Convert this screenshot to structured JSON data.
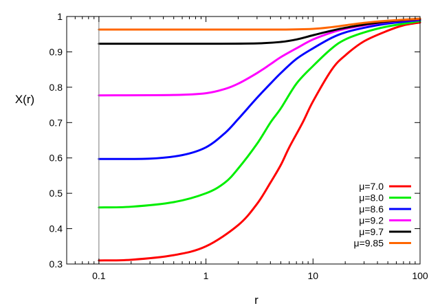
{
  "chart_data": {
    "type": "line",
    "title": "",
    "xlabel": "r",
    "ylabel": "X(r)",
    "xscale": "log",
    "xlim": [
      0.05,
      100
    ],
    "ylim": [
      0.3,
      1.0
    ],
    "x_ticks": [
      {
        "value": 0.1,
        "label": "0.1"
      },
      {
        "value": 1,
        "label": "1"
      },
      {
        "value": 10,
        "label": "10"
      },
      {
        "value": 100,
        "label": "100"
      }
    ],
    "y_ticks": [
      {
        "value": 0.3,
        "label": "0.3"
      },
      {
        "value": 0.4,
        "label": "0.4"
      },
      {
        "value": 0.5,
        "label": "0.5"
      },
      {
        "value": 0.6,
        "label": "0.6"
      },
      {
        "value": 0.7,
        "label": "0.7"
      },
      {
        "value": 0.8,
        "label": "0.8"
      },
      {
        "value": 0.9,
        "label": "0.9"
      },
      {
        "value": 1.0,
        "label": "1"
      }
    ],
    "legend_position": "bottom-right",
    "grid": false,
    "reference_line_x": 0.1,
    "series": [
      {
        "name": "μ=7.0",
        "color": "#ff0000",
        "x": [
          0.1,
          0.2,
          0.5,
          1,
          2,
          3,
          4,
          5,
          6,
          8,
          10,
          15,
          20,
          30,
          50,
          70,
          100
        ],
        "y": [
          0.31,
          0.312,
          0.325,
          0.35,
          0.41,
          0.47,
          0.53,
          0.58,
          0.63,
          0.7,
          0.76,
          0.85,
          0.89,
          0.93,
          0.96,
          0.975,
          0.983
        ]
      },
      {
        "name": "μ=8.0",
        "color": "#00ee00",
        "x": [
          0.1,
          0.2,
          0.5,
          1,
          1.5,
          2,
          3,
          4,
          5,
          7,
          10,
          15,
          20,
          30,
          50,
          100
        ],
        "y": [
          0.46,
          0.462,
          0.475,
          0.5,
          0.53,
          0.57,
          0.64,
          0.7,
          0.74,
          0.81,
          0.86,
          0.91,
          0.935,
          0.955,
          0.972,
          0.987
        ]
      },
      {
        "name": "μ=8.6",
        "color": "#0000ff",
        "x": [
          0.1,
          0.3,
          0.6,
          1,
          1.5,
          2,
          3,
          4,
          5,
          7,
          10,
          15,
          20,
          30,
          50,
          100
        ],
        "y": [
          0.597,
          0.598,
          0.608,
          0.63,
          0.67,
          0.71,
          0.77,
          0.81,
          0.84,
          0.88,
          0.91,
          0.94,
          0.955,
          0.968,
          0.98,
          0.99
        ]
      },
      {
        "name": "μ=9.2",
        "color": "#ff00ff",
        "x": [
          0.1,
          0.5,
          1,
          1.5,
          2,
          3,
          4,
          5,
          7,
          10,
          15,
          20,
          30,
          50,
          100
        ],
        "y": [
          0.777,
          0.778,
          0.783,
          0.795,
          0.81,
          0.84,
          0.865,
          0.885,
          0.91,
          0.935,
          0.955,
          0.965,
          0.975,
          0.985,
          0.992
        ]
      },
      {
        "name": "μ=9.7",
        "color": "#000000",
        "x": [
          0.1,
          1,
          3,
          5,
          7,
          10,
          15,
          20,
          30,
          50,
          100
        ],
        "y": [
          0.923,
          0.923,
          0.924,
          0.928,
          0.935,
          0.947,
          0.96,
          0.968,
          0.977,
          0.986,
          0.993
        ]
      },
      {
        "name": "μ=9.85",
        "color": "#ff6600",
        "x": [
          0.1,
          1,
          5,
          10,
          15,
          20,
          30,
          50,
          100
        ],
        "y": [
          0.963,
          0.963,
          0.963,
          0.965,
          0.97,
          0.975,
          0.982,
          0.988,
          0.994
        ]
      }
    ]
  }
}
